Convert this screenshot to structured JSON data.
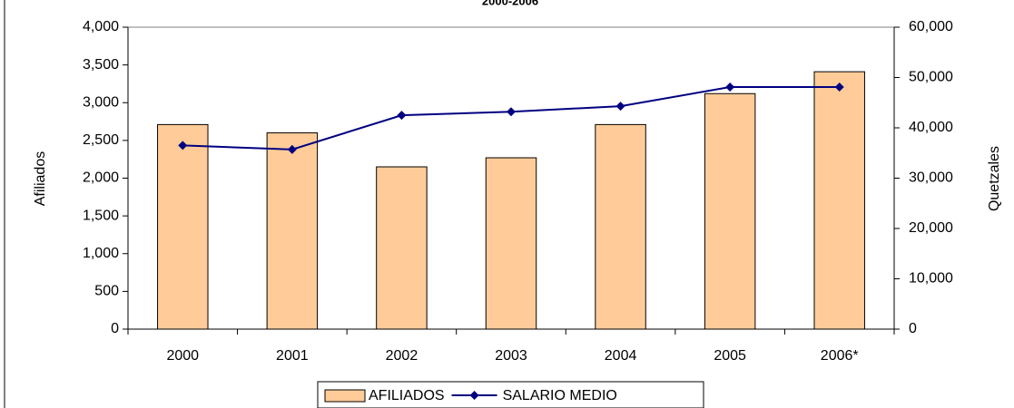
{
  "chart_data": {
    "type": "bar_line",
    "title": "2000-2006",
    "categories": [
      "2000",
      "2001",
      "2002",
      "2003",
      "2004",
      "2005",
      "2006*"
    ],
    "series": [
      {
        "name": "AFILIADOS",
        "type": "bar",
        "color": "#ffcc99",
        "values": [
          2710,
          2600,
          2150,
          2270,
          2710,
          3120,
          3410
        ]
      },
      {
        "name": "SALARIO MEDIO",
        "type": "line",
        "axis": "y2",
        "color": "#000080",
        "values": [
          36500,
          35700,
          42500,
          43200,
          44300,
          48100,
          48100
        ]
      }
    ],
    "ylabel": "Afiliados",
    "y2label": "Quetzales",
    "ylim": [
      0,
      4000
    ],
    "yticks": [
      0,
      500,
      {
        "value": 1000,
        "label": "1,000"
      },
      {
        "value": 1500,
        "label": "1,500"
      },
      {
        "value": 2000,
        "label": "2,000"
      },
      {
        "value": 2500,
        "label": "2,500"
      },
      {
        "value": 3000,
        "label": "3,000"
      },
      {
        "value": 3500,
        "label": "3,500"
      },
      {
        "value": 4000,
        "label": "4,000"
      }
    ],
    "y2lim": [
      0,
      60000
    ],
    "y2ticks": [
      0,
      {
        "value": 10000,
        "label": "10,000"
      },
      {
        "value": 20000,
        "label": "20,000"
      },
      {
        "value": 30000,
        "label": "30,000"
      },
      {
        "value": 40000,
        "label": "40,000"
      },
      {
        "value": 50000,
        "label": "50,000"
      },
      {
        "value": 60000,
        "label": "60,000"
      }
    ],
    "legend": "bottom"
  }
}
